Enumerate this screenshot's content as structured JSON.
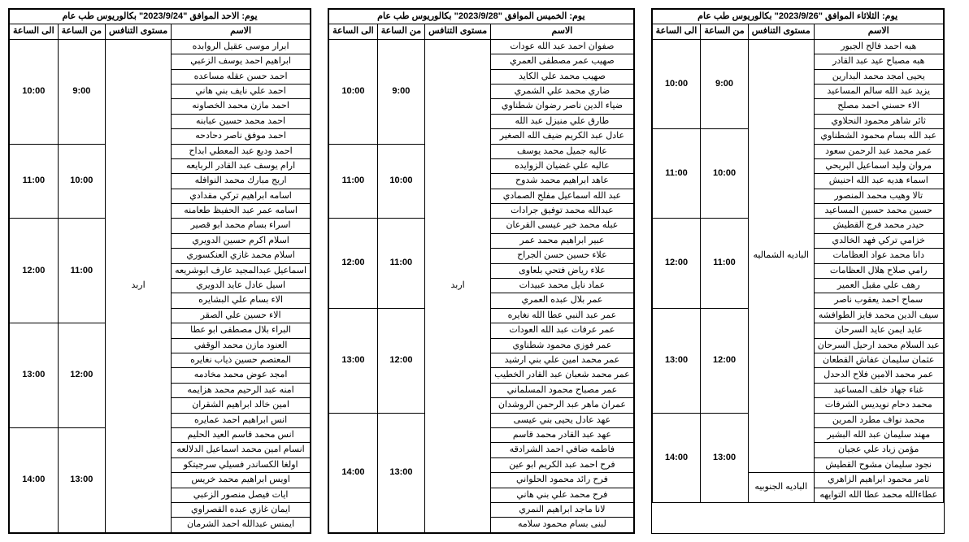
{
  "headers": {
    "name": "الاسم",
    "level": "مستوى التنافس",
    "from": "من الساعة",
    "to": "الى الساعة"
  },
  "blocks": [
    {
      "title": "يوم: الاحد الموافق \"2023/9/24\" بكالوريوس طب عام",
      "level": "اربد",
      "slots": [
        {
          "from": "9:00",
          "to": "10:00",
          "names": [
            "ابرار موسى عقيل الروابده",
            "ابراهيم احمد يوسف الزعبي",
            "احمد حسن عقله مساعده",
            "احمد علي نايف بني هاني",
            "احمد مازن محمد الخصاونه",
            "احمد محمد حسين عبابنه",
            "احمد موفق ناصر دحادحه"
          ]
        },
        {
          "from": "10:00",
          "to": "11:00",
          "names": [
            "احمد وديع عبد المعطي ابداح",
            "ارام يوسف عبد القادر الربايعه",
            "اريج مبارك محمد النوافله",
            "اسامه ابراهيم تركي مقدادي",
            "اسامه عمر عبد الحفيظ طعامنه"
          ]
        },
        {
          "from": "11:00",
          "to": "12:00",
          "names": [
            "اسراء بسام محمد ابو قصير",
            "اسلام اكرم حسين الدويري",
            "اسلام محمد غازي العنكسوري",
            "اسماعيل عبدالمجيد عارف ابوشريعه",
            "اسيل عادل عايد الدويري",
            "الاء بسام علي البشايره",
            "الاء حسين علي الصقر"
          ]
        },
        {
          "from": "12:00",
          "to": "13:00",
          "names": [
            "البراء بلال مصطفى ابو عطا",
            "العنود مازن محمد الوقفي",
            "المعتصم حسين ذياب نغايره",
            "امجد عوض محمد مخادمه",
            "امنه عبد الرحيم محمد هزايمه",
            "امين خالد ابراهيم الشقران",
            "انس ابراهيم احمد عمايره"
          ]
        },
        {
          "from": "13:00",
          "to": "14:00",
          "names": [
            "انس محمد قاسم العيد الحليم",
            "انسام امين محمد اسماعيل الدلالعه",
            "اولغا الكساندر فسيلي سرجيتكو",
            "اويس ابراهيم محمد خريس",
            "ايات فيصل منصور الزعبي",
            "ايمان غازي عبده القصراوي",
            "ايمنس عبدالله احمد الشرمان"
          ]
        }
      ]
    },
    {
      "title": "يوم: الخميس الموافق \"2023/9/28\" بكالوريوس طب عام",
      "level": "اربد",
      "slots": [
        {
          "from": "9:00",
          "to": "10:00",
          "names": [
            "صفوان احمد عبد الله عودات",
            "صهيب عمر مصطفى العمري",
            "صهيب محمد علي الكايد",
            "ضاري محمد علي الشمري",
            "ضياء الدين ناصر رضوان شطناوي",
            "طارق علي منيزل عبد الله",
            "عادل عبد الكريم ضيف الله الصغير"
          ]
        },
        {
          "from": "10:00",
          "to": "11:00",
          "names": [
            "عاليه جميل محمد يوسف",
            "عاليه علي غضيان الزوايده",
            "عاهد ابراهيم محمد شدوح",
            "عبد الله اسماعيل مفلح الصمادي",
            "عبدالله محمد توفيق جرادات"
          ]
        },
        {
          "from": "11:00",
          "to": "12:00",
          "names": [
            "عبله محمد خير عيسى القرعان",
            "عبير ابراهيم محمد عمر",
            "علاء حسين حسن الجراح",
            "علاء رياض فتحي بلعاوى",
            "عماد نايل محمد عبيدات",
            "عمر بلال عبده العمري"
          ]
        },
        {
          "from": "12:00",
          "to": "13:00",
          "names": [
            "عمر عبد النبي عطا الله نغايره",
            "عمر عرفات عبد الله العودات",
            "عمر فوزي محمود شطناوي",
            "عمر محمد امين علي بني ارشيد",
            "عمر محمد شعبان عبد القادر الخطيب",
            "عمر مصباح محمود المسلماني",
            "عمران ماهر عبد الرحمن الروشدان"
          ]
        },
        {
          "from": "13:00",
          "to": "14:00",
          "names": [
            "عهد عادل يحيى بني عيسى",
            "عهد عبد القادر محمد قاسم",
            "فاطمه ضافي احمد الشرادقه",
            "فرح احمد عبد الكريم ابو عين",
            "فرح رائد محمود الحلواني",
            "فرح محمد علي بني هاني",
            "لانا ماجد ابراهيم النمري",
            "لبنى بسام محمود سلامه"
          ]
        }
      ]
    },
    {
      "title": "يوم: الثلاثاء الموافق \"2023/9/26\" بكالوريوس طب عام",
      "level1": "الباديه الشماليه",
      "level2": "الباديه الجنوبيه",
      "slots": [
        {
          "from": "9:00",
          "to": "10:00",
          "names": [
            "هبه احمد فالح الجبور",
            "هبه مصباح عيد عبد القادر",
            "يحيى امجد محمد البدارين",
            "يزيد عبد الله سالم المساعيد",
            "الاء حسني احمد مصلح",
            "ثائر شاهر محمود النحلاوي"
          ]
        },
        {
          "from": "10:00",
          "to": "11:00",
          "names": [
            "عبد الله بسام محمود الشطناوي",
            "عمر محمد عبد الرحمن سعود",
            "مروان وليد اسماعيل البريحي",
            "اسماء هديه عبد الله احنيش",
            "تالا وهيب محمد المنصور",
            "حسين محمد حسين المساعيد"
          ]
        },
        {
          "from": "11:00",
          "to": "12:00",
          "names": [
            "حيدر محمد فرج القطيش",
            "خزامي تركي فهد الخالدي",
            "دانا محمد عواد العظامات",
            "رامي صلاح هلال العظامات",
            "رهف علي مقبل العمير",
            "سماح احمد يعقوب ناصر"
          ]
        },
        {
          "from": "12:00",
          "to": "13:00",
          "names": [
            "سيف الدين محمد فايز الطوافشه",
            "عايد ايمن عايد السرحان",
            "عبد السلام محمد ارحيل السرحان",
            "عثمان سليمان عفاش القطعان",
            "عمر محمد الامين فلاح الدحدل",
            "غناء جهاد خلف المساعيد",
            "محمد دحام نويديس الشرفات"
          ]
        },
        {
          "from": "13:00",
          "to": "14:00",
          "names": [
            "محمد نواف مطرد المرين",
            "مهند سليمان عبد الله البشير",
            "مؤمن زياد علي عجيان",
            "نجود سليمان مشوح القطيش",
            "ثامر محمود ابراهيم الزاهري",
            "عطاءالله محمد عطا الله التوايهه"
          ]
        }
      ]
    }
  ]
}
